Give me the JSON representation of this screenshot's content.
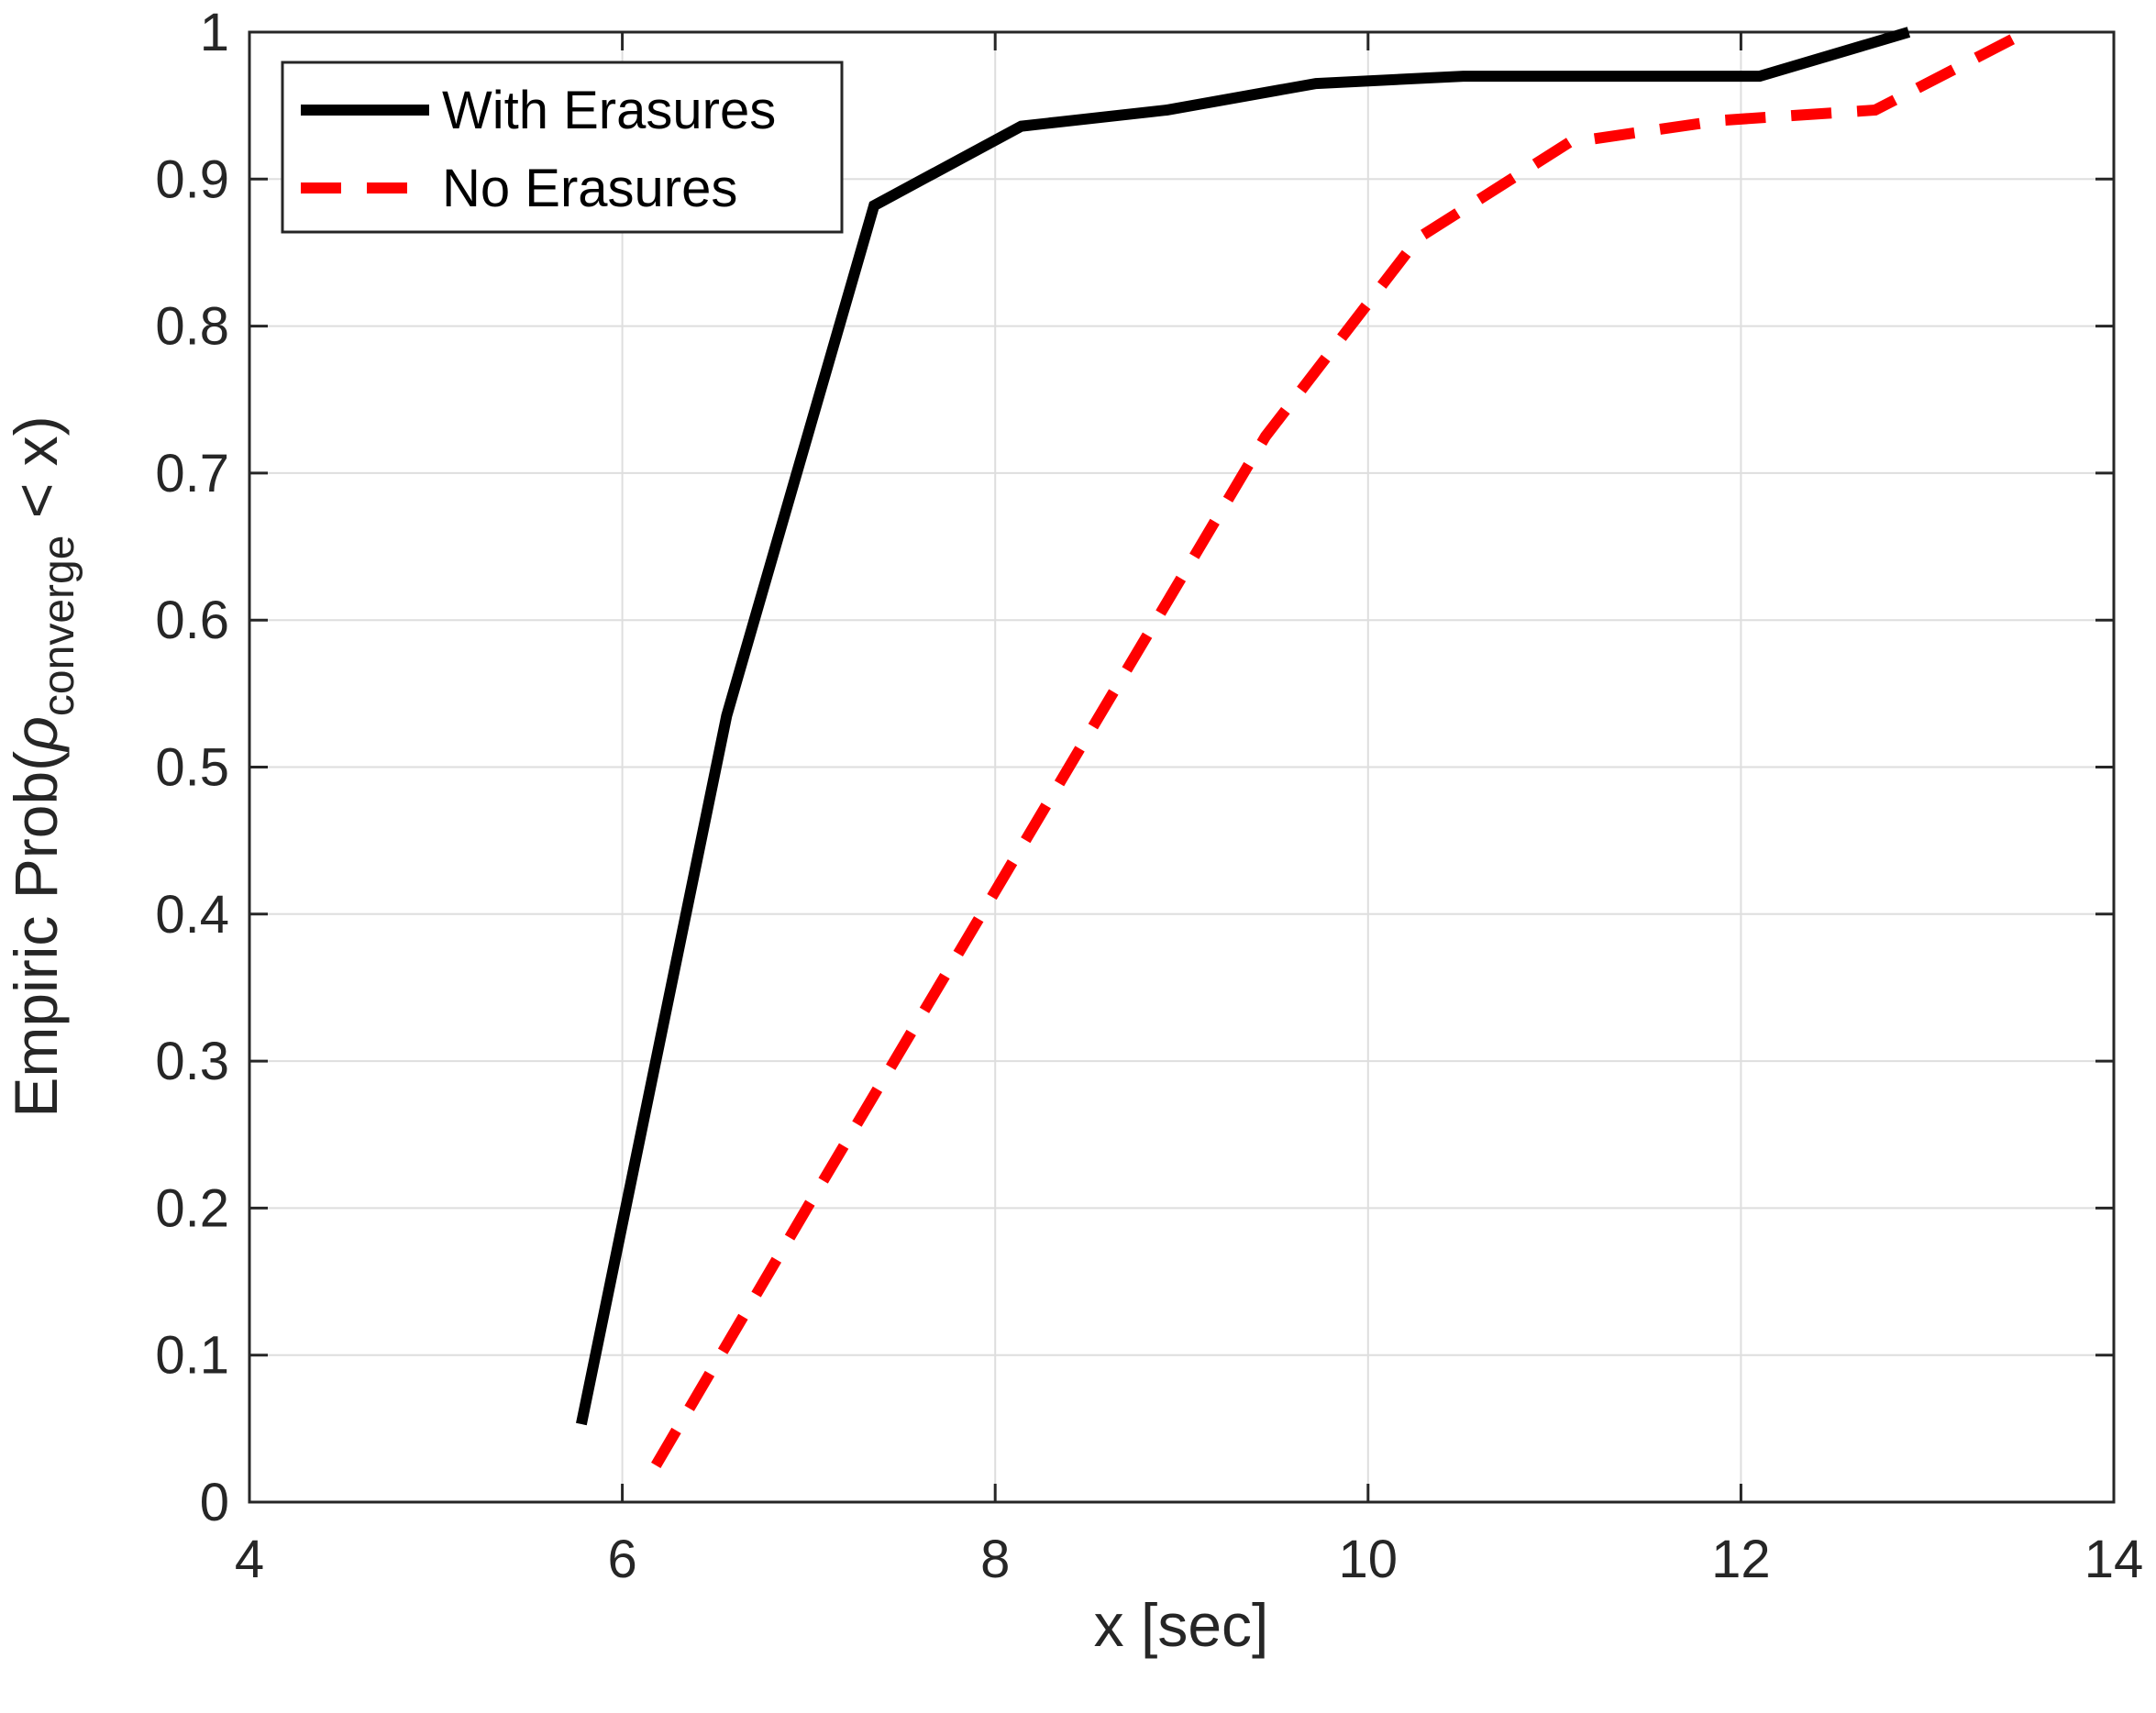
{
  "chart_data": {
    "type": "line",
    "xlabel": "x [sec]",
    "ylabel": {
      "prefix": "Empiric Prob(",
      "symbol": "ρ",
      "subscript": "converge",
      "suffix": " < x)"
    },
    "xlim": [
      4,
      14
    ],
    "ylim": [
      0,
      1
    ],
    "xticks": [
      4,
      6,
      8,
      10,
      12,
      14
    ],
    "xtick_labels": [
      "4",
      "6",
      "8",
      "10",
      "12",
      "14"
    ],
    "yticks": [
      0,
      0.1,
      0.2,
      0.3,
      0.4,
      0.5,
      0.6,
      0.7,
      0.8,
      0.9,
      1
    ],
    "ytick_labels": [
      "0",
      "0.1",
      "0.2",
      "0.3",
      "0.4",
      "0.5",
      "0.6",
      "0.7",
      "0.8",
      "0.9",
      "1"
    ],
    "grid": true,
    "legend_position": "top-left",
    "series": [
      {
        "name": "With Erasures",
        "color": "#000000",
        "style": "solid",
        "x": [
          5.78,
          6.56,
          7.35,
          8.14,
          8.92,
          9.72,
          10.51,
          11.3,
          12.1,
          12.9
        ],
        "y": [
          0.053,
          0.535,
          0.882,
          0.936,
          0.947,
          0.965,
          0.97,
          0.97,
          0.97,
          1.0
        ]
      },
      {
        "name": "No Erasures",
        "color": "#ff0000",
        "style": "dashed",
        "x": [
          6.18,
          6.99,
          7.81,
          8.63,
          9.45,
          10.27,
          11.08,
          11.9,
          12.72,
          13.53
        ],
        "y": [
          0.025,
          0.2,
          0.375,
          0.55,
          0.725,
          0.86,
          0.925,
          0.94,
          0.947,
          1.0
        ]
      }
    ]
  }
}
